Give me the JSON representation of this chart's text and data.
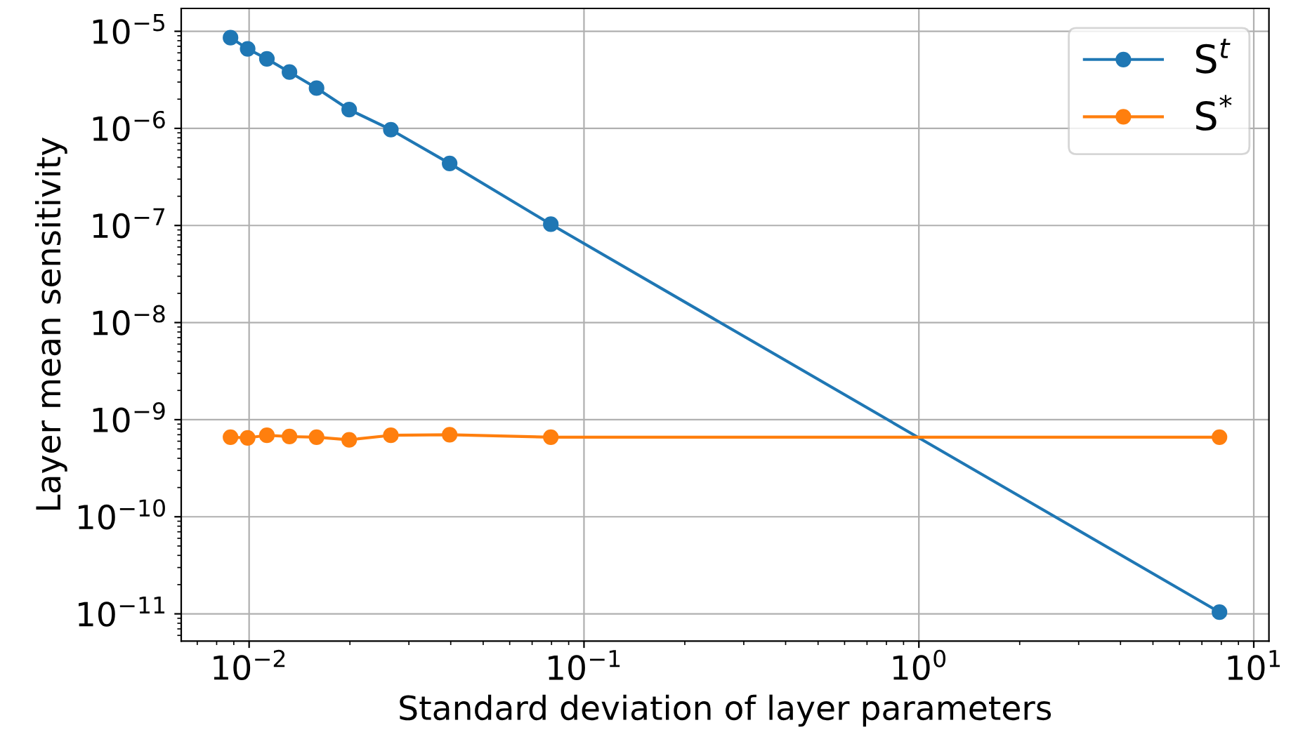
{
  "chart_data": {
    "type": "line",
    "xlabel": "Standard deviation of layer parameters",
    "ylabel": "Layer mean sensitivity",
    "log": "xy",
    "grid": true,
    "legend": "top right",
    "marker": "circle",
    "line_style": "solid",
    "xlim": [
      0.00627,
      11.1
    ],
    "ylim": [
      5.24e-12,
      1.72e-05
    ],
    "xticks": [
      {
        "value": 0.01,
        "label": "10$^{−2}$"
      },
      {
        "value": 0.1,
        "label": "10$^{−1}$"
      },
      {
        "value": 1,
        "label": "10$^{0}$"
      },
      {
        "value": 10,
        "label": "10$^{1}$"
      }
    ],
    "yticks": [
      {
        "value": 1e-11,
        "label": "10$^{−11}$"
      },
      {
        "value": 1e-10,
        "label": "10$^{−10}$"
      },
      {
        "value": 1e-09,
        "label": "10$^{−9}$"
      },
      {
        "value": 1e-08,
        "label": "10$^{−8}$"
      },
      {
        "value": 1e-07,
        "label": "10$^{−7}$"
      },
      {
        "value": 1e-06,
        "label": "10$^{−6}$"
      },
      {
        "value": 1e-05,
        "label": "10$^{−5}$"
      }
    ],
    "x": [
      0.0088,
      0.0099,
      0.0113,
      0.0132,
      0.0159,
      0.0199,
      0.0265,
      0.0397,
      0.0796,
      7.9
    ],
    "series": [
      {
        "name": "S$^{t}$",
        "color": "#1f77b4",
        "values": [
          8.6e-06,
          6.6e-06,
          5.2e-06,
          3.8e-06,
          2.6e-06,
          1.56e-06,
          9.7e-07,
          4.35e-07,
          1.03e-07,
          1.04e-11
        ]
      },
      {
        "name": "S$^{*}$",
        "color": "#ff7f0e",
        "values": [
          6.6e-10,
          6.5e-10,
          6.9e-10,
          6.7e-10,
          6.6e-10,
          6.2e-10,
          6.9e-10,
          7e-10,
          6.6e-10,
          6.6e-10
        ]
      }
    ]
  }
}
